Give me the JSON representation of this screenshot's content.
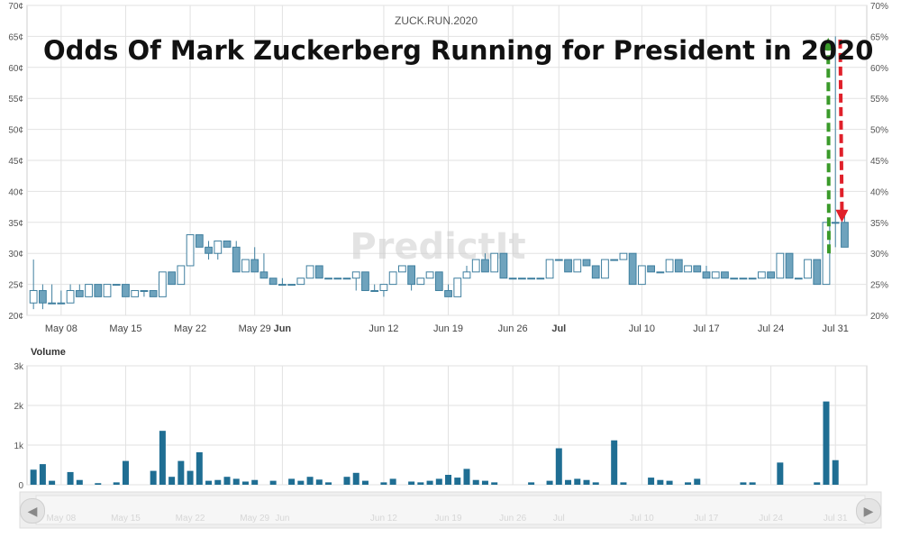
{
  "chart_data": {
    "type": "candlestick",
    "title": "Odds Of Mark Zuckerberg Running for President in 2020",
    "subtitle": "ZUCK.RUN.2020",
    "watermark": "PredictIt",
    "price_axis_left": {
      "ylim": [
        20,
        70
      ],
      "ticks": [
        "20¢",
        "25¢",
        "30¢",
        "35¢",
        "40¢",
        "45¢",
        "50¢",
        "55¢",
        "60¢",
        "65¢",
        "70¢"
      ]
    },
    "price_axis_right": {
      "ylim": [
        20,
        70
      ],
      "ticks": [
        "20%",
        "25%",
        "30%",
        "35%",
        "40%",
        "45%",
        "50%",
        "55%",
        "60%",
        "65%",
        "70%"
      ]
    },
    "x_tick_labels": [
      "May 08",
      "May 15",
      "May 22",
      "May 29",
      "Jun",
      "Jun 12",
      "Jun 19",
      "Jun 26",
      "Jul",
      "Jul 10",
      "Jul 17",
      "Jul 24",
      "Jul 31"
    ],
    "x_tick_days": [
      4,
      11,
      18,
      25,
      28,
      39,
      46,
      53,
      58,
      67,
      74,
      81,
      88
    ],
    "x_bold_ticks": [
      "Jun",
      "Jul"
    ],
    "x_range_days": [
      0.3,
      91.4
    ],
    "day_zero": "May 04",
    "up_color": "#ffffff",
    "down_color": "#6fa3bd",
    "candle_edge": "#3f7f9f",
    "annotation_up_color": "#3a9a2a",
    "annotation_down_color": "#e0202a",
    "ohlc": [
      {
        "d": 1,
        "o": 22,
        "h": 29,
        "l": 21,
        "c": 24
      },
      {
        "d": 2,
        "o": 24,
        "h": 25,
        "l": 21,
        "c": 22
      },
      {
        "d": 3,
        "o": 22,
        "h": 25,
        "l": 22,
        "c": 22
      },
      {
        "d": 4,
        "o": 22,
        "h": 24,
        "l": 22,
        "c": 22
      },
      {
        "d": 5,
        "o": 22,
        "h": 25,
        "l": 22,
        "c": 24
      },
      {
        "d": 6,
        "o": 24,
        "h": 25,
        "l": 23,
        "c": 23
      },
      {
        "d": 7,
        "o": 23,
        "h": 25,
        "l": 23,
        "c": 25
      },
      {
        "d": 8,
        "o": 25,
        "h": 25,
        "l": 23,
        "c": 23
      },
      {
        "d": 9,
        "o": 23,
        "h": 25,
        "l": 23,
        "c": 25
      },
      {
        "d": 10,
        "o": 25,
        "h": 25,
        "l": 25,
        "c": 25
      },
      {
        "d": 11,
        "o": 25,
        "h": 25,
        "l": 23,
        "c": 23
      },
      {
        "d": 12,
        "o": 23,
        "h": 24,
        "l": 23,
        "c": 24
      },
      {
        "d": 13,
        "o": 24,
        "h": 24,
        "l": 23,
        "c": 24
      },
      {
        "d": 14,
        "o": 24,
        "h": 24,
        "l": 23,
        "c": 23
      },
      {
        "d": 15,
        "o": 23,
        "h": 27,
        "l": 23,
        "c": 27
      },
      {
        "d": 16,
        "o": 27,
        "h": 27,
        "l": 25,
        "c": 25
      },
      {
        "d": 17,
        "o": 25,
        "h": 28,
        "l": 25,
        "c": 28
      },
      {
        "d": 18,
        "o": 28,
        "h": 33,
        "l": 28,
        "c": 33
      },
      {
        "d": 19,
        "o": 33,
        "h": 33,
        "l": 31,
        "c": 31
      },
      {
        "d": 20,
        "o": 31,
        "h": 32,
        "l": 29,
        "c": 30
      },
      {
        "d": 21,
        "o": 30,
        "h": 32,
        "l": 29,
        "c": 32
      },
      {
        "d": 22,
        "o": 32,
        "h": 32,
        "l": 31,
        "c": 31
      },
      {
        "d": 23,
        "o": 31,
        "h": 32,
        "l": 27,
        "c": 27
      },
      {
        "d": 24,
        "o": 27,
        "h": 29,
        "l": 27,
        "c": 29
      },
      {
        "d": 25,
        "o": 29,
        "h": 31,
        "l": 27,
        "c": 27
      },
      {
        "d": 26,
        "o": 27,
        "h": 30,
        "l": 26,
        "c": 26
      },
      {
        "d": 27,
        "o": 26,
        "h": 26,
        "l": 25,
        "c": 25
      },
      {
        "d": 28,
        "o": 25,
        "h": 26,
        "l": 25,
        "c": 25
      },
      {
        "d": 29,
        "o": 25,
        "h": 25,
        "l": 25,
        "c": 25
      },
      {
        "d": 30,
        "o": 25,
        "h": 26,
        "l": 25,
        "c": 26
      },
      {
        "d": 31,
        "o": 26,
        "h": 28,
        "l": 26,
        "c": 28
      },
      {
        "d": 32,
        "o": 28,
        "h": 28,
        "l": 26,
        "c": 26
      },
      {
        "d": 33,
        "o": 26,
        "h": 26,
        "l": 26,
        "c": 26
      },
      {
        "d": 34,
        "o": 26,
        "h": 26,
        "l": 26,
        "c": 26
      },
      {
        "d": 35,
        "o": 26,
        "h": 26,
        "l": 26,
        "c": 26
      },
      {
        "d": 36,
        "o": 26,
        "h": 27,
        "l": 24,
        "c": 27
      },
      {
        "d": 37,
        "o": 27,
        "h": 27,
        "l": 24,
        "c": 24
      },
      {
        "d": 38,
        "o": 24,
        "h": 25,
        "l": 24,
        "c": 24
      },
      {
        "d": 39,
        "o": 24,
        "h": 25,
        "l": 23,
        "c": 25
      },
      {
        "d": 40,
        "o": 25,
        "h": 27,
        "l": 25,
        "c": 27
      },
      {
        "d": 41,
        "o": 27,
        "h": 28,
        "l": 27,
        "c": 28
      },
      {
        "d": 42,
        "o": 28,
        "h": 28,
        "l": 24,
        "c": 25
      },
      {
        "d": 43,
        "o": 25,
        "h": 26,
        "l": 25,
        "c": 26
      },
      {
        "d": 44,
        "o": 26,
        "h": 27,
        "l": 26,
        "c": 27
      },
      {
        "d": 45,
        "o": 27,
        "h": 27,
        "l": 24,
        "c": 24
      },
      {
        "d": 46,
        "o": 24,
        "h": 25,
        "l": 23,
        "c": 23
      },
      {
        "d": 47,
        "o": 23,
        "h": 26,
        "l": 23,
        "c": 26
      },
      {
        "d": 48,
        "o": 26,
        "h": 28,
        "l": 26,
        "c": 27
      },
      {
        "d": 49,
        "o": 27,
        "h": 29,
        "l": 27,
        "c": 29
      },
      {
        "d": 50,
        "o": 29,
        "h": 30,
        "l": 27,
        "c": 27
      },
      {
        "d": 51,
        "o": 27,
        "h": 30,
        "l": 27,
        "c": 30
      },
      {
        "d": 52,
        "o": 30,
        "h": 30,
        "l": 26,
        "c": 26
      },
      {
        "d": 53,
        "o": 26,
        "h": 26,
        "l": 26,
        "c": 26
      },
      {
        "d": 54,
        "o": 26,
        "h": 26,
        "l": 26,
        "c": 26
      },
      {
        "d": 55,
        "o": 26,
        "h": 26,
        "l": 26,
        "c": 26
      },
      {
        "d": 56,
        "o": 26,
        "h": 26,
        "l": 26,
        "c": 26
      },
      {
        "d": 57,
        "o": 26,
        "h": 29,
        "l": 26,
        "c": 29
      },
      {
        "d": 58,
        "o": 29,
        "h": 29,
        "l": 29,
        "c": 29
      },
      {
        "d": 59,
        "o": 29,
        "h": 29,
        "l": 27,
        "c": 27
      },
      {
        "d": 60,
        "o": 27,
        "h": 29,
        "l": 27,
        "c": 29
      },
      {
        "d": 61,
        "o": 29,
        "h": 29,
        "l": 28,
        "c": 28
      },
      {
        "d": 62,
        "o": 28,
        "h": 28,
        "l": 26,
        "c": 26
      },
      {
        "d": 63,
        "o": 26,
        "h": 29,
        "l": 26,
        "c": 29
      },
      {
        "d": 64,
        "o": 29,
        "h": 29,
        "l": 29,
        "c": 29
      },
      {
        "d": 65,
        "o": 29,
        "h": 30,
        "l": 29,
        "c": 30
      },
      {
        "d": 66,
        "o": 30,
        "h": 30,
        "l": 25,
        "c": 25
      },
      {
        "d": 67,
        "o": 25,
        "h": 28,
        "l": 25,
        "c": 28
      },
      {
        "d": 68,
        "o": 28,
        "h": 28,
        "l": 27,
        "c": 27
      },
      {
        "d": 69,
        "o": 27,
        "h": 27,
        "l": 27,
        "c": 27
      },
      {
        "d": 70,
        "o": 27,
        "h": 29,
        "l": 27,
        "c": 29
      },
      {
        "d": 71,
        "o": 29,
        "h": 29,
        "l": 27,
        "c": 27
      },
      {
        "d": 72,
        "o": 27,
        "h": 28,
        "l": 27,
        "c": 28
      },
      {
        "d": 73,
        "o": 28,
        "h": 28,
        "l": 27,
        "c": 27
      },
      {
        "d": 74,
        "o": 27,
        "h": 28,
        "l": 26,
        "c": 26
      },
      {
        "d": 75,
        "o": 26,
        "h": 27,
        "l": 26,
        "c": 27
      },
      {
        "d": 76,
        "o": 27,
        "h": 27,
        "l": 26,
        "c": 26
      },
      {
        "d": 77,
        "o": 26,
        "h": 26,
        "l": 26,
        "c": 26
      },
      {
        "d": 78,
        "o": 26,
        "h": 26,
        "l": 26,
        "c": 26
      },
      {
        "d": 79,
        "o": 26,
        "h": 26,
        "l": 26,
        "c": 26
      },
      {
        "d": 80,
        "o": 26,
        "h": 27,
        "l": 26,
        "c": 27
      },
      {
        "d": 81,
        "o": 27,
        "h": 27,
        "l": 26,
        "c": 26
      },
      {
        "d": 82,
        "o": 26,
        "h": 30,
        "l": 26,
        "c": 30
      },
      {
        "d": 83,
        "o": 30,
        "h": 30,
        "l": 26,
        "c": 26
      },
      {
        "d": 84,
        "o": 26,
        "h": 26,
        "l": 26,
        "c": 26
      },
      {
        "d": 85,
        "o": 26,
        "h": 29,
        "l": 26,
        "c": 29
      },
      {
        "d": 86,
        "o": 29,
        "h": 29,
        "l": 25,
        "c": 25
      },
      {
        "d": 87,
        "o": 25,
        "h": 35,
        "l": 25,
        "c": 35
      },
      {
        "d": 88,
        "o": 35,
        "h": 65,
        "l": 31,
        "c": 35
      },
      {
        "d": 89,
        "o": 35,
        "h": 36,
        "l": 31,
        "c": 31
      }
    ],
    "volume": {
      "title": "Volume",
      "ylim": [
        0,
        3000
      ],
      "ticks": [
        "0",
        "1k",
        "2k",
        "3k"
      ],
      "values": [
        {
          "d": 1,
          "v": 380
        },
        {
          "d": 2,
          "v": 520
        },
        {
          "d": 3,
          "v": 100
        },
        {
          "d": 5,
          "v": 320
        },
        {
          "d": 6,
          "v": 120
        },
        {
          "d": 8,
          "v": 40
        },
        {
          "d": 10,
          "v": 60
        },
        {
          "d": 11,
          "v": 600
        },
        {
          "d": 14,
          "v": 350
        },
        {
          "d": 15,
          "v": 1360
        },
        {
          "d": 16,
          "v": 200
        },
        {
          "d": 17,
          "v": 600
        },
        {
          "d": 18,
          "v": 350
        },
        {
          "d": 19,
          "v": 820
        },
        {
          "d": 20,
          "v": 100
        },
        {
          "d": 21,
          "v": 120
        },
        {
          "d": 22,
          "v": 200
        },
        {
          "d": 23,
          "v": 150
        },
        {
          "d": 24,
          "v": 80
        },
        {
          "d": 25,
          "v": 120
        },
        {
          "d": 27,
          "v": 100
        },
        {
          "d": 29,
          "v": 150
        },
        {
          "d": 30,
          "v": 100
        },
        {
          "d": 31,
          "v": 200
        },
        {
          "d": 32,
          "v": 130
        },
        {
          "d": 33,
          "v": 60
        },
        {
          "d": 35,
          "v": 200
        },
        {
          "d": 36,
          "v": 300
        },
        {
          "d": 37,
          "v": 100
        },
        {
          "d": 39,
          "v": 60
        },
        {
          "d": 40,
          "v": 150
        },
        {
          "d": 42,
          "v": 80
        },
        {
          "d": 43,
          "v": 60
        },
        {
          "d": 44,
          "v": 100
        },
        {
          "d": 45,
          "v": 150
        },
        {
          "d": 46,
          "v": 250
        },
        {
          "d": 47,
          "v": 180
        },
        {
          "d": 48,
          "v": 400
        },
        {
          "d": 49,
          "v": 120
        },
        {
          "d": 50,
          "v": 100
        },
        {
          "d": 51,
          "v": 60
        },
        {
          "d": 55,
          "v": 60
        },
        {
          "d": 57,
          "v": 100
        },
        {
          "d": 58,
          "v": 920
        },
        {
          "d": 59,
          "v": 120
        },
        {
          "d": 60,
          "v": 150
        },
        {
          "d": 61,
          "v": 120
        },
        {
          "d": 62,
          "v": 60
        },
        {
          "d": 64,
          "v": 1120
        },
        {
          "d": 65,
          "v": 60
        },
        {
          "d": 68,
          "v": 180
        },
        {
          "d": 69,
          "v": 120
        },
        {
          "d": 70,
          "v": 100
        },
        {
          "d": 72,
          "v": 60
        },
        {
          "d": 73,
          "v": 150
        },
        {
          "d": 78,
          "v": 60
        },
        {
          "d": 79,
          "v": 60
        },
        {
          "d": 82,
          "v": 560
        },
        {
          "d": 86,
          "v": 60
        },
        {
          "d": 87,
          "v": 2100
        },
        {
          "d": 88,
          "v": 620
        }
      ]
    }
  }
}
